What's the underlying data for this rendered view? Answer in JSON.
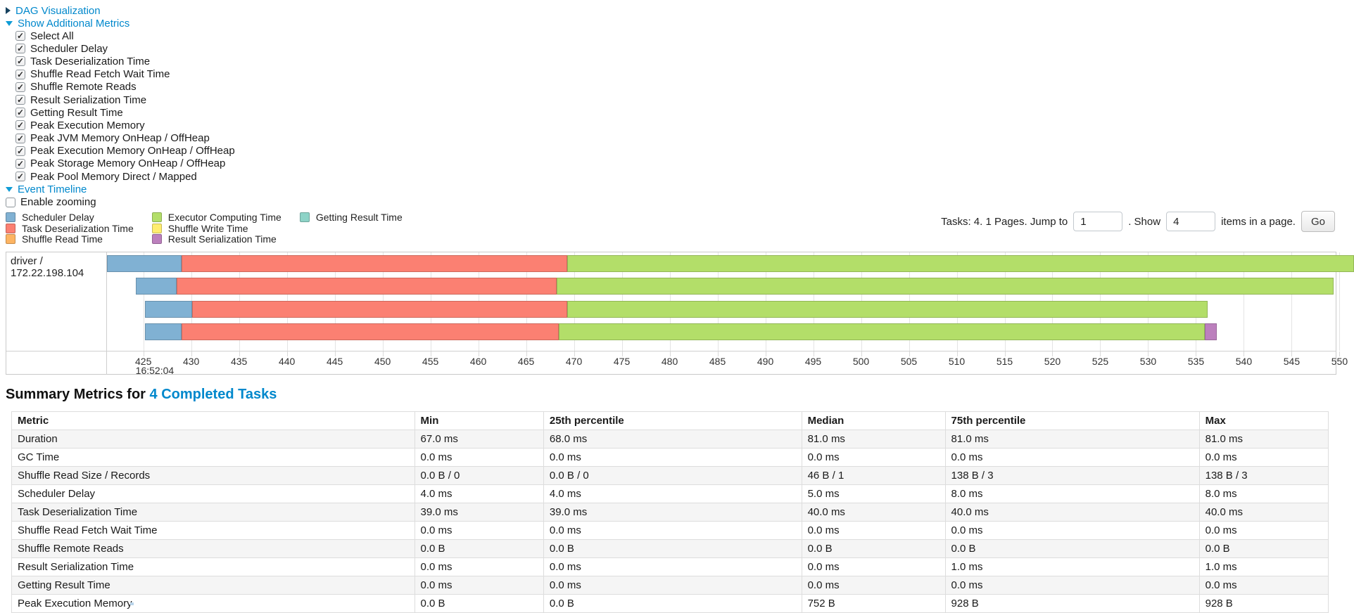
{
  "controls": {
    "dag_label": "DAG Visualization",
    "metrics_label": "Show Additional Metrics",
    "metric_items": [
      "Select All",
      "Scheduler Delay",
      "Task Deserialization Time",
      "Shuffle Read Fetch Wait Time",
      "Shuffle Remote Reads",
      "Result Serialization Time",
      "Getting Result Time",
      "Peak Execution Memory",
      "Peak JVM Memory OnHeap / OffHeap",
      "Peak Execution Memory OnHeap / OffHeap",
      "Peak Storage Memory OnHeap / OffHeap",
      "Peak Pool Memory Direct / Mapped"
    ],
    "timeline_label": "Event Timeline",
    "zoom_label": "Enable zooming"
  },
  "pagination": {
    "tasks_text": "Tasks: 4. 1 Pages. Jump to",
    "jump_value": "1",
    "show_text": ". Show",
    "show_value": "4",
    "items_text": "items in a page.",
    "go_label": "Go"
  },
  "chart_data": {
    "type": "timeline",
    "group_label": "driver / 172.22.198.104",
    "axis": {
      "min_ms": 421.2,
      "max_ms": 549.6,
      "tick_start": 425,
      "tick_step": 5,
      "tick_end": 550,
      "major_label": "16:52:04"
    },
    "legend_columns": [
      [
        {
          "label": "Scheduler Delay",
          "type": "scheduler-delay"
        },
        {
          "label": "Task Deserialization Time",
          "type": "task-deserialization"
        },
        {
          "label": "Shuffle Read Time",
          "type": "shuffle-read"
        }
      ],
      [
        {
          "label": "Executor Computing Time",
          "type": "executor-computing"
        },
        {
          "label": "Shuffle Write Time",
          "type": "shuffle-write"
        },
        {
          "label": "Result Serialization Time",
          "type": "result-serialization"
        }
      ],
      [
        {
          "label": "Getting Result Time",
          "type": "getting-result"
        }
      ]
    ],
    "colors": {
      "scheduler-delay": "#80B1D3",
      "task-deserialization": "#FB8072",
      "shuffle-read": "#FDB462",
      "executor-computing": "#B3DE69",
      "shuffle-write": "#FFED6F",
      "result-serialization": "#BC80BD",
      "getting-result": "#8DD3C7"
    },
    "row_tops": [
      4,
      36,
      69,
      101
    ],
    "tasks": [
      {
        "name": "task-0",
        "segments": [
          {
            "type": "scheduler-delay",
            "start": 421.2,
            "end": 429.0
          },
          {
            "type": "task-deserialization",
            "start": 429.0,
            "end": 469.3
          },
          {
            "type": "executor-computing",
            "start": 469.3,
            "end": 551.5
          }
        ]
      },
      {
        "name": "task-1",
        "segments": [
          {
            "type": "scheduler-delay",
            "start": 424.2,
            "end": 428.5
          },
          {
            "type": "task-deserialization",
            "start": 428.5,
            "end": 468.2
          },
          {
            "type": "executor-computing",
            "start": 468.2,
            "end": 549.4
          }
        ]
      },
      {
        "name": "task-2",
        "segments": [
          {
            "type": "scheduler-delay",
            "start": 425.2,
            "end": 430.1
          },
          {
            "type": "task-deserialization",
            "start": 430.1,
            "end": 469.3
          },
          {
            "type": "executor-computing",
            "start": 469.3,
            "end": 536.2
          }
        ]
      },
      {
        "name": "task-3",
        "segments": [
          {
            "type": "scheduler-delay",
            "start": 425.2,
            "end": 429.0
          },
          {
            "type": "task-deserialization",
            "start": 429.0,
            "end": 468.4
          },
          {
            "type": "executor-computing",
            "start": 468.4,
            "end": 535.9
          },
          {
            "type": "result-serialization",
            "start": 535.9,
            "end": 537.2
          }
        ]
      }
    ]
  },
  "summary": {
    "title_prefix": "Summary Metrics for ",
    "title_link": "4 Completed Tasks",
    "columns": [
      "Metric",
      "Min",
      "25th percentile",
      "Median",
      "75th percentile",
      "Max"
    ],
    "rows": [
      {
        "metric": "Duration",
        "values": [
          "67.0 ms",
          "68.0 ms",
          "81.0 ms",
          "81.0 ms",
          "81.0 ms"
        ]
      },
      {
        "metric": "GC Time",
        "values": [
          "0.0 ms",
          "0.0 ms",
          "0.0 ms",
          "0.0 ms",
          "0.0 ms"
        ]
      },
      {
        "metric": "Shuffle Read Size / Records",
        "values": [
          "0.0 B / 0",
          "0.0 B / 0",
          "46 B / 1",
          "138 B / 3",
          "138 B / 3"
        ]
      },
      {
        "metric": "Scheduler Delay",
        "values": [
          "4.0 ms",
          "4.0 ms",
          "5.0 ms",
          "8.0 ms",
          "8.0 ms"
        ]
      },
      {
        "metric": "Task Deserialization Time",
        "values": [
          "39.0 ms",
          "39.0 ms",
          "40.0 ms",
          "40.0 ms",
          "40.0 ms"
        ]
      },
      {
        "metric": "Shuffle Read Fetch Wait Time",
        "values": [
          "0.0 ms",
          "0.0 ms",
          "0.0 ms",
          "0.0 ms",
          "0.0 ms"
        ]
      },
      {
        "metric": "Shuffle Remote Reads",
        "values": [
          "0.0 B",
          "0.0 B",
          "0.0 B",
          "0.0 B",
          "0.0 B"
        ]
      },
      {
        "metric": "Result Serialization Time",
        "values": [
          "0.0 ms",
          "0.0 ms",
          "0.0 ms",
          "1.0 ms",
          "1.0 ms"
        ]
      },
      {
        "metric": "Getting Result Time",
        "values": [
          "0.0 ms",
          "0.0 ms",
          "0.0 ms",
          "0.0 ms",
          "0.0 ms"
        ]
      },
      {
        "metric": "Peak Execution Memory",
        "values": [
          "0.0 B",
          "0.0 B",
          "752 B",
          "928 B",
          "928 B"
        ]
      }
    ]
  }
}
